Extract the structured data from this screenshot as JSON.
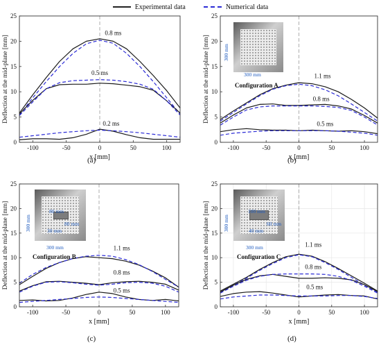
{
  "legend": {
    "experimental": "Experimental data",
    "numerical": "Numerical data",
    "experimental_color": "#1a1a1a",
    "numerical_color": "#2b2bd6"
  },
  "insets": {
    "b": {
      "config": "Configuration A",
      "dim_h": "300 mm",
      "dim_v": "300 mm"
    },
    "c": {
      "config": "Configuration B",
      "dim_h": "300 mm",
      "dim_v": "300 mm",
      "win_w": "80 mm",
      "win_h": "30 mm",
      "win_side": "80 mm"
    },
    "d": {
      "config": "Configuration C",
      "dim_h": "300 mm",
      "dim_v": "300 mm",
      "win_w": "100 mm",
      "win_h": "40 mm",
      "win_side": "60 mm"
    }
  },
  "chart_data": [
    {
      "id": "a",
      "panel_label": "(a)",
      "type": "line",
      "xlabel": "x [mm]",
      "ylabel": "Deflection at the mid-plane [mm]",
      "xlim": [
        -120,
        120
      ],
      "ylim": [
        0,
        25
      ],
      "xticks": [
        "-100",
        "-50",
        "0",
        "50",
        "100"
      ],
      "yticks": [
        "0",
        "5",
        "10",
        "15",
        "20",
        "25"
      ],
      "grid": false,
      "annotations": [
        {
          "text": "0.8 ms",
          "x": 20,
          "y": 21.2
        },
        {
          "text": "0.5 ms",
          "x": 0,
          "y": 13.3
        },
        {
          "text": "0.2 ms",
          "x": 17,
          "y": 3.3
        }
      ],
      "series": [
        {
          "kind": "experimental",
          "time": "0.8 ms",
          "x": [
            -120,
            -100,
            -80,
            -60,
            -40,
            -20,
            0,
            20,
            40,
            60,
            80,
            100,
            120
          ],
          "y": [
            5.8,
            9.4,
            12.8,
            16.0,
            18.5,
            20.0,
            20.5,
            20.0,
            18.5,
            16.0,
            13.2,
            10.2,
            6.8
          ]
        },
        {
          "kind": "numerical",
          "time": "0.8 ms",
          "x": [
            -120,
            -100,
            -80,
            -60,
            -40,
            -20,
            0,
            20,
            40,
            60,
            80,
            100,
            120
          ],
          "y": [
            5.4,
            8.8,
            12.0,
            15.0,
            17.6,
            19.5,
            20.2,
            19.6,
            17.6,
            15.0,
            12.0,
            8.8,
            5.6
          ]
        },
        {
          "kind": "experimental",
          "time": "0.5 ms",
          "x": [
            -120,
            -100,
            -80,
            -60,
            -40,
            -20,
            0,
            20,
            40,
            60,
            80,
            100,
            120
          ],
          "y": [
            5.6,
            8.3,
            10.6,
            11.4,
            11.5,
            11.5,
            11.7,
            11.6,
            11.3,
            11.0,
            10.3,
            8.2,
            5.8
          ]
        },
        {
          "kind": "numerical",
          "time": "0.5 ms",
          "x": [
            -120,
            -100,
            -80,
            -60,
            -40,
            -20,
            0,
            20,
            40,
            60,
            80,
            100,
            120
          ],
          "y": [
            5.3,
            8.0,
            10.6,
            11.8,
            12.2,
            12.3,
            12.4,
            12.3,
            12.0,
            11.5,
            10.5,
            8.2,
            5.4
          ]
        },
        {
          "kind": "experimental",
          "time": "0.2 ms",
          "x": [
            -120,
            -100,
            -80,
            -60,
            -40,
            -20,
            0,
            20,
            40,
            60,
            80,
            100,
            120
          ],
          "y": [
            0.5,
            0.7,
            0.7,
            0.6,
            0.9,
            1.6,
            2.6,
            2.2,
            1.5,
            0.9,
            0.6,
            0.6,
            0.6
          ]
        },
        {
          "kind": "numerical",
          "time": "0.2 ms",
          "x": [
            -120,
            -100,
            -80,
            -60,
            -40,
            -20,
            0,
            20,
            40,
            60,
            80,
            100,
            120
          ],
          "y": [
            1.0,
            1.3,
            1.6,
            1.9,
            2.1,
            2.3,
            2.4,
            2.3,
            2.1,
            1.9,
            1.6,
            1.3,
            1.0
          ]
        }
      ]
    },
    {
      "id": "b",
      "panel_label": "(b)",
      "type": "line",
      "xlabel": "x [mm]",
      "ylabel": "Deflection at the mid-plane [mm]",
      "xlim": [
        -120,
        120
      ],
      "ylim": [
        0,
        25
      ],
      "xticks": [
        "-100",
        "-50",
        "0",
        "50",
        "100"
      ],
      "yticks": [
        "0",
        "5",
        "10",
        "15",
        "20",
        "25"
      ],
      "grid": false,
      "annotations": [
        {
          "text": "1.1 ms",
          "x": 36,
          "y": 12.7
        },
        {
          "text": "0.8 ms",
          "x": 34,
          "y": 8.2
        },
        {
          "text": "0.5 ms",
          "x": 40,
          "y": 3.2
        }
      ],
      "series": [
        {
          "kind": "experimental",
          "time": "1.1 ms",
          "x": [
            -120,
            -100,
            -80,
            -60,
            -40,
            -20,
            0,
            20,
            40,
            60,
            80,
            100,
            120
          ],
          "y": [
            4.5,
            6.2,
            7.8,
            9.4,
            10.6,
            11.3,
            11.8,
            11.6,
            11.0,
            10.0,
            8.5,
            6.8,
            4.8
          ]
        },
        {
          "kind": "numerical",
          "time": "1.1 ms",
          "x": [
            -120,
            -100,
            -80,
            -60,
            -40,
            -20,
            0,
            20,
            40,
            60,
            80,
            100,
            120
          ],
          "y": [
            4.2,
            5.9,
            7.6,
            9.2,
            10.5,
            11.2,
            11.5,
            11.2,
            10.4,
            9.2,
            7.6,
            5.9,
            4.2
          ]
        },
        {
          "kind": "experimental",
          "time": "0.8 ms",
          "x": [
            -120,
            -100,
            -80,
            -60,
            -40,
            -20,
            0,
            20,
            40,
            60,
            80,
            100,
            120
          ],
          "y": [
            3.8,
            5.4,
            6.8,
            7.5,
            7.6,
            7.3,
            7.3,
            7.4,
            7.5,
            7.2,
            6.6,
            5.3,
            3.8
          ]
        },
        {
          "kind": "numerical",
          "time": "0.8 ms",
          "x": [
            -120,
            -100,
            -80,
            -60,
            -40,
            -20,
            0,
            20,
            40,
            60,
            80,
            100,
            120
          ],
          "y": [
            3.4,
            5.0,
            6.4,
            7.0,
            7.2,
            7.2,
            7.2,
            7.2,
            7.1,
            6.9,
            6.3,
            5.0,
            3.4
          ]
        },
        {
          "kind": "experimental",
          "time": "0.5 ms",
          "x": [
            -120,
            -100,
            -80,
            -60,
            -40,
            -20,
            0,
            20,
            40,
            60,
            80,
            100,
            120
          ],
          "y": [
            2.1,
            2.5,
            2.7,
            2.5,
            2.4,
            2.4,
            2.3,
            2.4,
            2.3,
            2.2,
            2.3,
            2.1,
            1.7
          ]
        },
        {
          "kind": "numerical",
          "time": "0.5 ms",
          "x": [
            -120,
            -100,
            -80,
            -60,
            -40,
            -20,
            0,
            20,
            40,
            60,
            80,
            100,
            120
          ],
          "y": [
            1.4,
            1.8,
            2.0,
            2.2,
            2.3,
            2.3,
            2.3,
            2.3,
            2.3,
            2.2,
            2.0,
            1.8,
            1.4
          ]
        }
      ]
    },
    {
      "id": "c",
      "panel_label": "(c)",
      "type": "line",
      "xlabel": "x [mm]",
      "ylabel": "Deflection at the mid-plane [mm]",
      "xlim": [
        -120,
        120
      ],
      "ylim": [
        0,
        25
      ],
      "xticks": [
        "-100",
        "-50",
        "0",
        "50",
        "100"
      ],
      "yticks": [
        "0",
        "5",
        "10",
        "15",
        "20",
        "25"
      ],
      "grid": false,
      "annotations": [
        {
          "text": "1.1 ms",
          "x": 34,
          "y": 11.5
        },
        {
          "text": "0.8 ms",
          "x": 34,
          "y": 6.6
        },
        {
          "text": "0.5 ms",
          "x": 34,
          "y": 2.9
        }
      ],
      "series": [
        {
          "kind": "experimental",
          "time": "1.1 ms",
          "x": [
            -120,
            -100,
            -80,
            -60,
            -40,
            -20,
            0,
            20,
            40,
            60,
            80,
            100,
            120
          ],
          "y": [
            4.5,
            6.2,
            7.8,
            9.0,
            9.8,
            10.2,
            10.0,
            9.8,
            9.3,
            8.5,
            7.3,
            5.9,
            4.0
          ]
        },
        {
          "kind": "numerical",
          "time": "1.1 ms",
          "x": [
            -120,
            -100,
            -80,
            -60,
            -40,
            -20,
            0,
            20,
            40,
            60,
            80,
            100,
            120
          ],
          "y": [
            4.8,
            6.6,
            8.0,
            9.0,
            9.8,
            10.3,
            10.5,
            10.3,
            9.6,
            8.6,
            7.2,
            5.6,
            4.0
          ]
        },
        {
          "kind": "experimental",
          "time": "0.8 ms",
          "x": [
            -120,
            -100,
            -80,
            -60,
            -40,
            -20,
            0,
            20,
            40,
            60,
            80,
            100,
            120
          ],
          "y": [
            3.2,
            4.3,
            5.1,
            5.2,
            5.0,
            4.8,
            4.5,
            4.9,
            5.1,
            5.2,
            5.0,
            4.6,
            3.4
          ]
        },
        {
          "kind": "numerical",
          "time": "0.8 ms",
          "x": [
            -120,
            -100,
            -80,
            -60,
            -40,
            -20,
            0,
            20,
            40,
            60,
            80,
            100,
            120
          ],
          "y": [
            3.0,
            4.2,
            5.0,
            5.1,
            4.9,
            4.6,
            4.4,
            4.6,
            4.9,
            5.0,
            4.8,
            4.2,
            3.0
          ]
        },
        {
          "kind": "experimental",
          "time": "0.5 ms",
          "x": [
            -120,
            -100,
            -80,
            -60,
            -40,
            -20,
            0,
            20,
            40,
            60,
            80,
            100,
            120
          ],
          "y": [
            1.3,
            1.4,
            1.2,
            1.3,
            1.8,
            2.5,
            3.0,
            2.7,
            2.0,
            1.5,
            1.3,
            1.5,
            1.2
          ]
        },
        {
          "kind": "numerical",
          "time": "0.5 ms",
          "x": [
            -120,
            -100,
            -80,
            -60,
            -40,
            -20,
            0,
            20,
            40,
            60,
            80,
            100,
            120
          ],
          "y": [
            0.9,
            1.1,
            1.3,
            1.5,
            1.7,
            1.9,
            2.0,
            1.9,
            1.7,
            1.5,
            1.3,
            1.1,
            0.9
          ]
        }
      ]
    },
    {
      "id": "d",
      "panel_label": "(d)",
      "type": "line",
      "xlabel": "x [mm]",
      "ylabel": "Deflection at the mid-plane [mm]",
      "xlim": [
        -120,
        120
      ],
      "ylim": [
        0,
        25
      ],
      "xticks": [
        "-100",
        "-50",
        "0",
        "50",
        "100"
      ],
      "yticks": [
        "0",
        "5",
        "10",
        "15",
        "20",
        "25"
      ],
      "grid": true,
      "annotations": [
        {
          "text": "1.1 ms",
          "x": 22,
          "y": 12.2
        },
        {
          "text": "0.8 ms",
          "x": 22,
          "y": 7.7
        },
        {
          "text": "0.5 ms",
          "x": 24,
          "y": 3.6
        }
      ],
      "series": [
        {
          "kind": "experimental",
          "time": "1.1 ms",
          "x": [
            -120,
            -100,
            -80,
            -60,
            -40,
            -20,
            0,
            20,
            40,
            60,
            80,
            100,
            120
          ],
          "y": [
            3.2,
            4.6,
            6.0,
            7.6,
            9.0,
            10.2,
            10.7,
            10.3,
            9.2,
            7.8,
            6.3,
            4.8,
            3.2
          ]
        },
        {
          "kind": "numerical",
          "time": "1.1 ms",
          "x": [
            -120,
            -100,
            -80,
            -60,
            -40,
            -20,
            0,
            20,
            40,
            60,
            80,
            100,
            120
          ],
          "y": [
            3.0,
            4.4,
            5.8,
            7.4,
            8.8,
            10.0,
            10.6,
            10.2,
            9.0,
            7.6,
            6.0,
            4.4,
            3.0
          ]
        },
        {
          "kind": "experimental",
          "time": "0.8 ms",
          "x": [
            -120,
            -100,
            -80,
            -60,
            -40,
            -20,
            0,
            20,
            40,
            60,
            80,
            100,
            120
          ],
          "y": [
            3.0,
            4.4,
            5.6,
            6.3,
            6.6,
            6.2,
            5.8,
            5.8,
            5.9,
            5.8,
            5.5,
            4.5,
            3.1
          ]
        },
        {
          "kind": "numerical",
          "time": "0.8 ms",
          "x": [
            -120,
            -100,
            -80,
            -60,
            -40,
            -20,
            0,
            20,
            40,
            60,
            80,
            100,
            120
          ],
          "y": [
            2.8,
            4.2,
            5.4,
            6.2,
            6.6,
            6.7,
            6.7,
            6.7,
            6.6,
            6.2,
            5.4,
            4.2,
            2.8
          ]
        },
        {
          "kind": "experimental",
          "time": "0.5 ms",
          "x": [
            -120,
            -100,
            -80,
            -60,
            -40,
            -20,
            0,
            20,
            40,
            60,
            80,
            100,
            120
          ],
          "y": [
            2.1,
            2.7,
            3.0,
            3.1,
            2.8,
            2.4,
            2.0,
            2.2,
            2.4,
            2.5,
            2.3,
            2.2,
            1.6
          ]
        },
        {
          "kind": "numerical",
          "time": "0.5 ms",
          "x": [
            -120,
            -100,
            -80,
            -60,
            -40,
            -20,
            0,
            20,
            40,
            60,
            80,
            100,
            120
          ],
          "y": [
            1.6,
            2.0,
            2.2,
            2.4,
            2.4,
            2.3,
            2.2,
            2.2,
            2.2,
            2.3,
            2.3,
            2.1,
            1.7
          ]
        }
      ]
    }
  ]
}
